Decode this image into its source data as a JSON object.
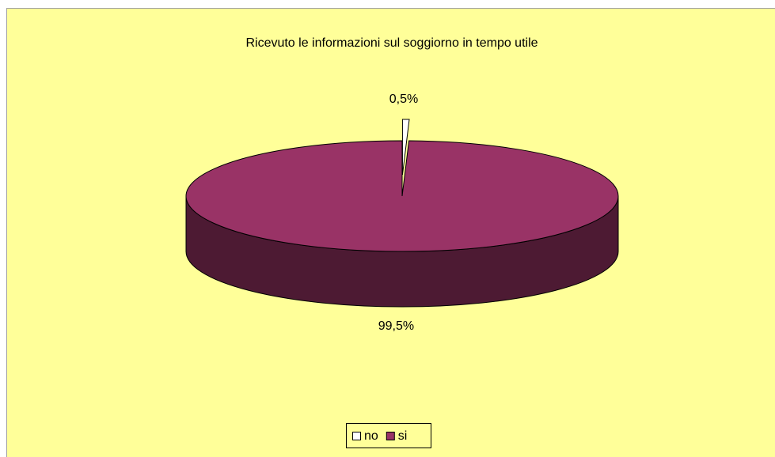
{
  "chart_data": {
    "type": "pie",
    "title": "Ricevuto le informazioni sul soggiorno in tempo utile",
    "categories": [
      "no",
      "si"
    ],
    "values": [
      0.5,
      99.5
    ],
    "value_labels": [
      "0,5%",
      "99,5%"
    ],
    "colors": [
      "#ffffff",
      "#993366"
    ],
    "legend": "bottom"
  }
}
